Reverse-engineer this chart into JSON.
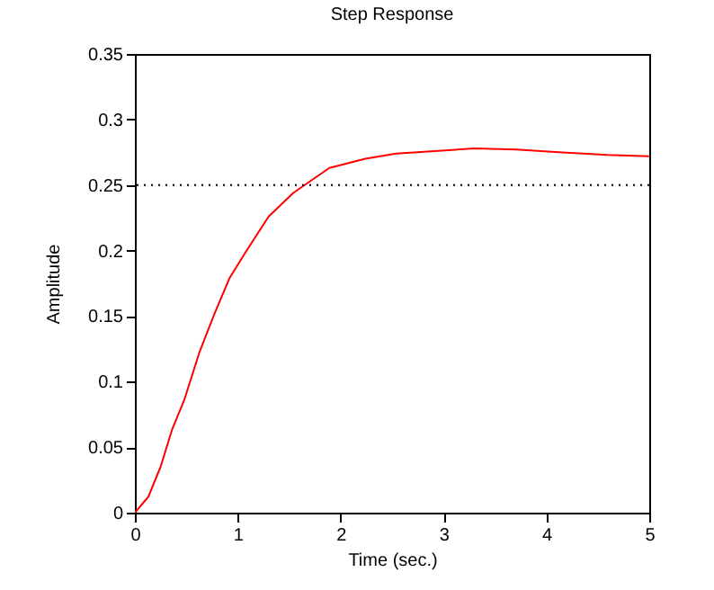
{
  "chart_data": {
    "type": "line",
    "title": "Step Response",
    "xlabel": "Time (sec.)",
    "ylabel": "Amplitude",
    "x": [
      0,
      0.13,
      0.25,
      0.36,
      0.48,
      0.63,
      0.77,
      0.92,
      1.07,
      1.3,
      1.54,
      1.65,
      1.89,
      2.24,
      2.54,
      2.95,
      3.3,
      3.71,
      4.12,
      4.59,
      5
    ],
    "series": [
      {
        "color": "#ff0000",
        "values": [
          0,
          0.012,
          0.035,
          0.063,
          0.086,
          0.123,
          0.151,
          0.179,
          0.198,
          0.226,
          0.244,
          0.25,
          0.263,
          0.27,
          0.274,
          0.276,
          0.278,
          0.277,
          0.275,
          0.273,
          0.272
        ]
      }
    ],
    "xlim": [
      0,
      5
    ],
    "ylim": [
      0,
      0.35
    ],
    "xticks": [
      0,
      1,
      2,
      3,
      4,
      5
    ],
    "yticks": [
      0,
      0.05,
      0.1,
      0.15,
      0.2,
      0.25,
      0.3,
      0.35
    ],
    "grid": false,
    "marker": "none",
    "line_style": "solid",
    "ref_lines": [
      {
        "axis": "y",
        "value": 0.25,
        "color": "#000000",
        "line_style": "dotted"
      }
    ]
  }
}
